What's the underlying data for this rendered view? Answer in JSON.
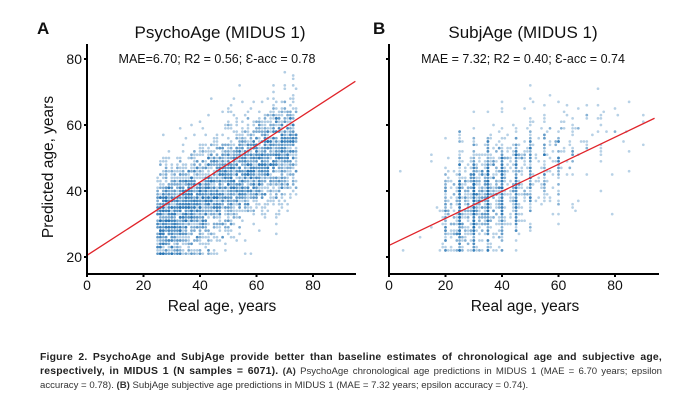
{
  "chart_data": [
    {
      "type": "scatter",
      "panel_letter": "A",
      "title": "PsychoAge (MIDUS 1)",
      "subtitle": "MAE=6.70; R2 = 0.56; Ɛ-acc = 0.78",
      "xlabel": "Real age, years",
      "ylabel": "Predicted age, years",
      "xlim": [
        0,
        95
      ],
      "ylim": [
        15,
        85
      ],
      "xticks": [
        0,
        20,
        40,
        60,
        80
      ],
      "yticks": [
        20,
        40,
        60,
        80
      ],
      "ytick_labels_shown": true,
      "grid": false,
      "legend": "none",
      "point_color": "#1f6fb2",
      "fit_line_color": "#e0242a",
      "fit_line": {
        "intercept": 20.5,
        "slope": 0.555,
        "x_range": [
          0,
          95
        ]
      },
      "points_summary": {
        "n": 6071,
        "x_range": [
          25,
          74
        ],
        "y_range": [
          21,
          76
        ],
        "residual_sd": 7.5
      },
      "metrics": {
        "MAE": 6.7,
        "R2": 0.56,
        "epsilon_acc": 0.78
      }
    },
    {
      "type": "scatter",
      "panel_letter": "B",
      "title": "SubjAge (MIDUS 1)",
      "subtitle": "MAE = 7.32; R2 = 0.40; Ɛ-acc = 0.74",
      "xlabel": "Real age, years",
      "ylabel": "",
      "xlim": [
        0,
        95
      ],
      "ylim": [
        15,
        85
      ],
      "xticks": [
        0,
        20,
        40,
        60,
        80
      ],
      "yticks": [
        20,
        40,
        60,
        80
      ],
      "ytick_labels_shown": false,
      "grid": false,
      "legend": "none",
      "point_color": "#1f6fb2",
      "fit_line_color": "#e0242a",
      "fit_line": {
        "intercept": 23.5,
        "slope": 0.41,
        "x_range": [
          0,
          94
        ]
      },
      "points_summary": {
        "n": 6071,
        "x_range": [
          2,
          90
        ],
        "y_range": [
          22,
          74
        ],
        "residual_sd": 8.0,
        "x_values_discrete_step": 5
      },
      "metrics": {
        "MAE": 7.32,
        "R2": 0.4,
        "epsilon_acc": 0.74
      }
    }
  ],
  "caption": {
    "bold": "Figure 2. PsychoAge and SubjAge provide better than baseline estimates of chronological age and subjective age, respectively, in MIDUS 1 (N samples = 6071).",
    "part_a_label": "(A)",
    "part_a_text": " PsychoAge chronological age predictions in MIDUS 1 (MAE = 6.70 years; epsilon accuracy = 0.78). ",
    "part_b_label": "(B)",
    "part_b_text": " SubjAge subjective age predictions in MIDUS 1 (MAE = 7.32 years; epsilon accuracy = 0.74)."
  }
}
